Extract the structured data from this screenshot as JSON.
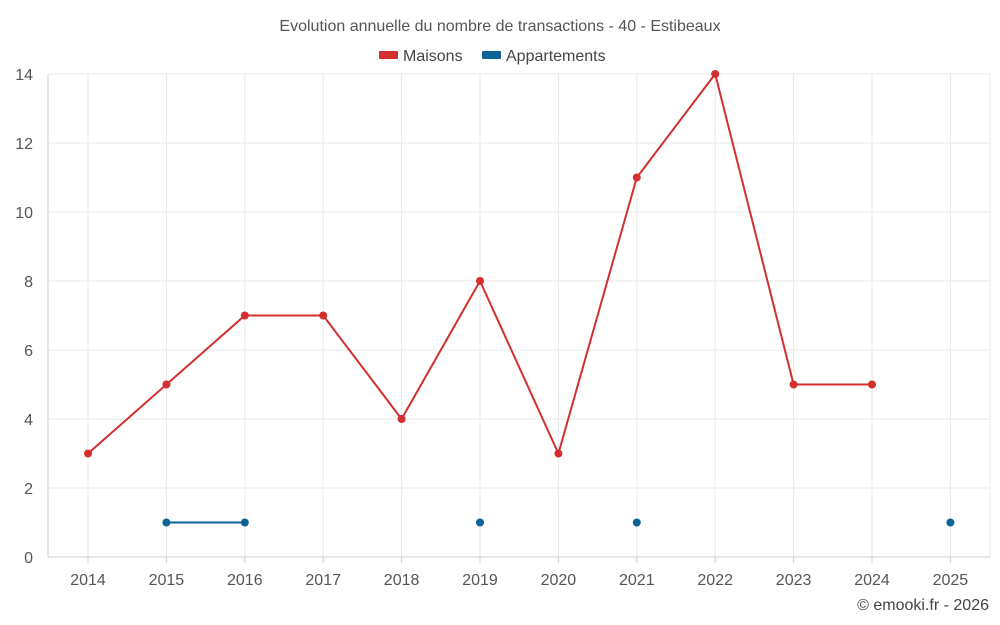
{
  "chart_data": {
    "type": "line",
    "title": "Evolution annuelle du nombre de transactions - 40 - Estibeaux",
    "categories": [
      "2014",
      "2015",
      "2016",
      "2017",
      "2018",
      "2019",
      "2020",
      "2021",
      "2022",
      "2023",
      "2024",
      "2025"
    ],
    "series": [
      {
        "name": "Maisons",
        "color": "#d32f2f",
        "values": [
          3,
          5,
          7,
          7,
          4,
          8,
          3,
          11,
          14,
          5,
          5,
          null
        ]
      },
      {
        "name": "Appartements",
        "color": "#0d6296",
        "values": [
          null,
          1,
          1,
          null,
          null,
          1,
          null,
          1,
          null,
          null,
          null,
          1
        ]
      }
    ],
    "yticks": [
      "0",
      "2",
      "4",
      "6",
      "8",
      "10",
      "12",
      "14"
    ],
    "ylim": [
      0,
      14
    ],
    "xlabel": "",
    "ylabel": "",
    "grid": true,
    "legend_position": "top-center"
  },
  "credit": "© emooki.fr - 2026"
}
